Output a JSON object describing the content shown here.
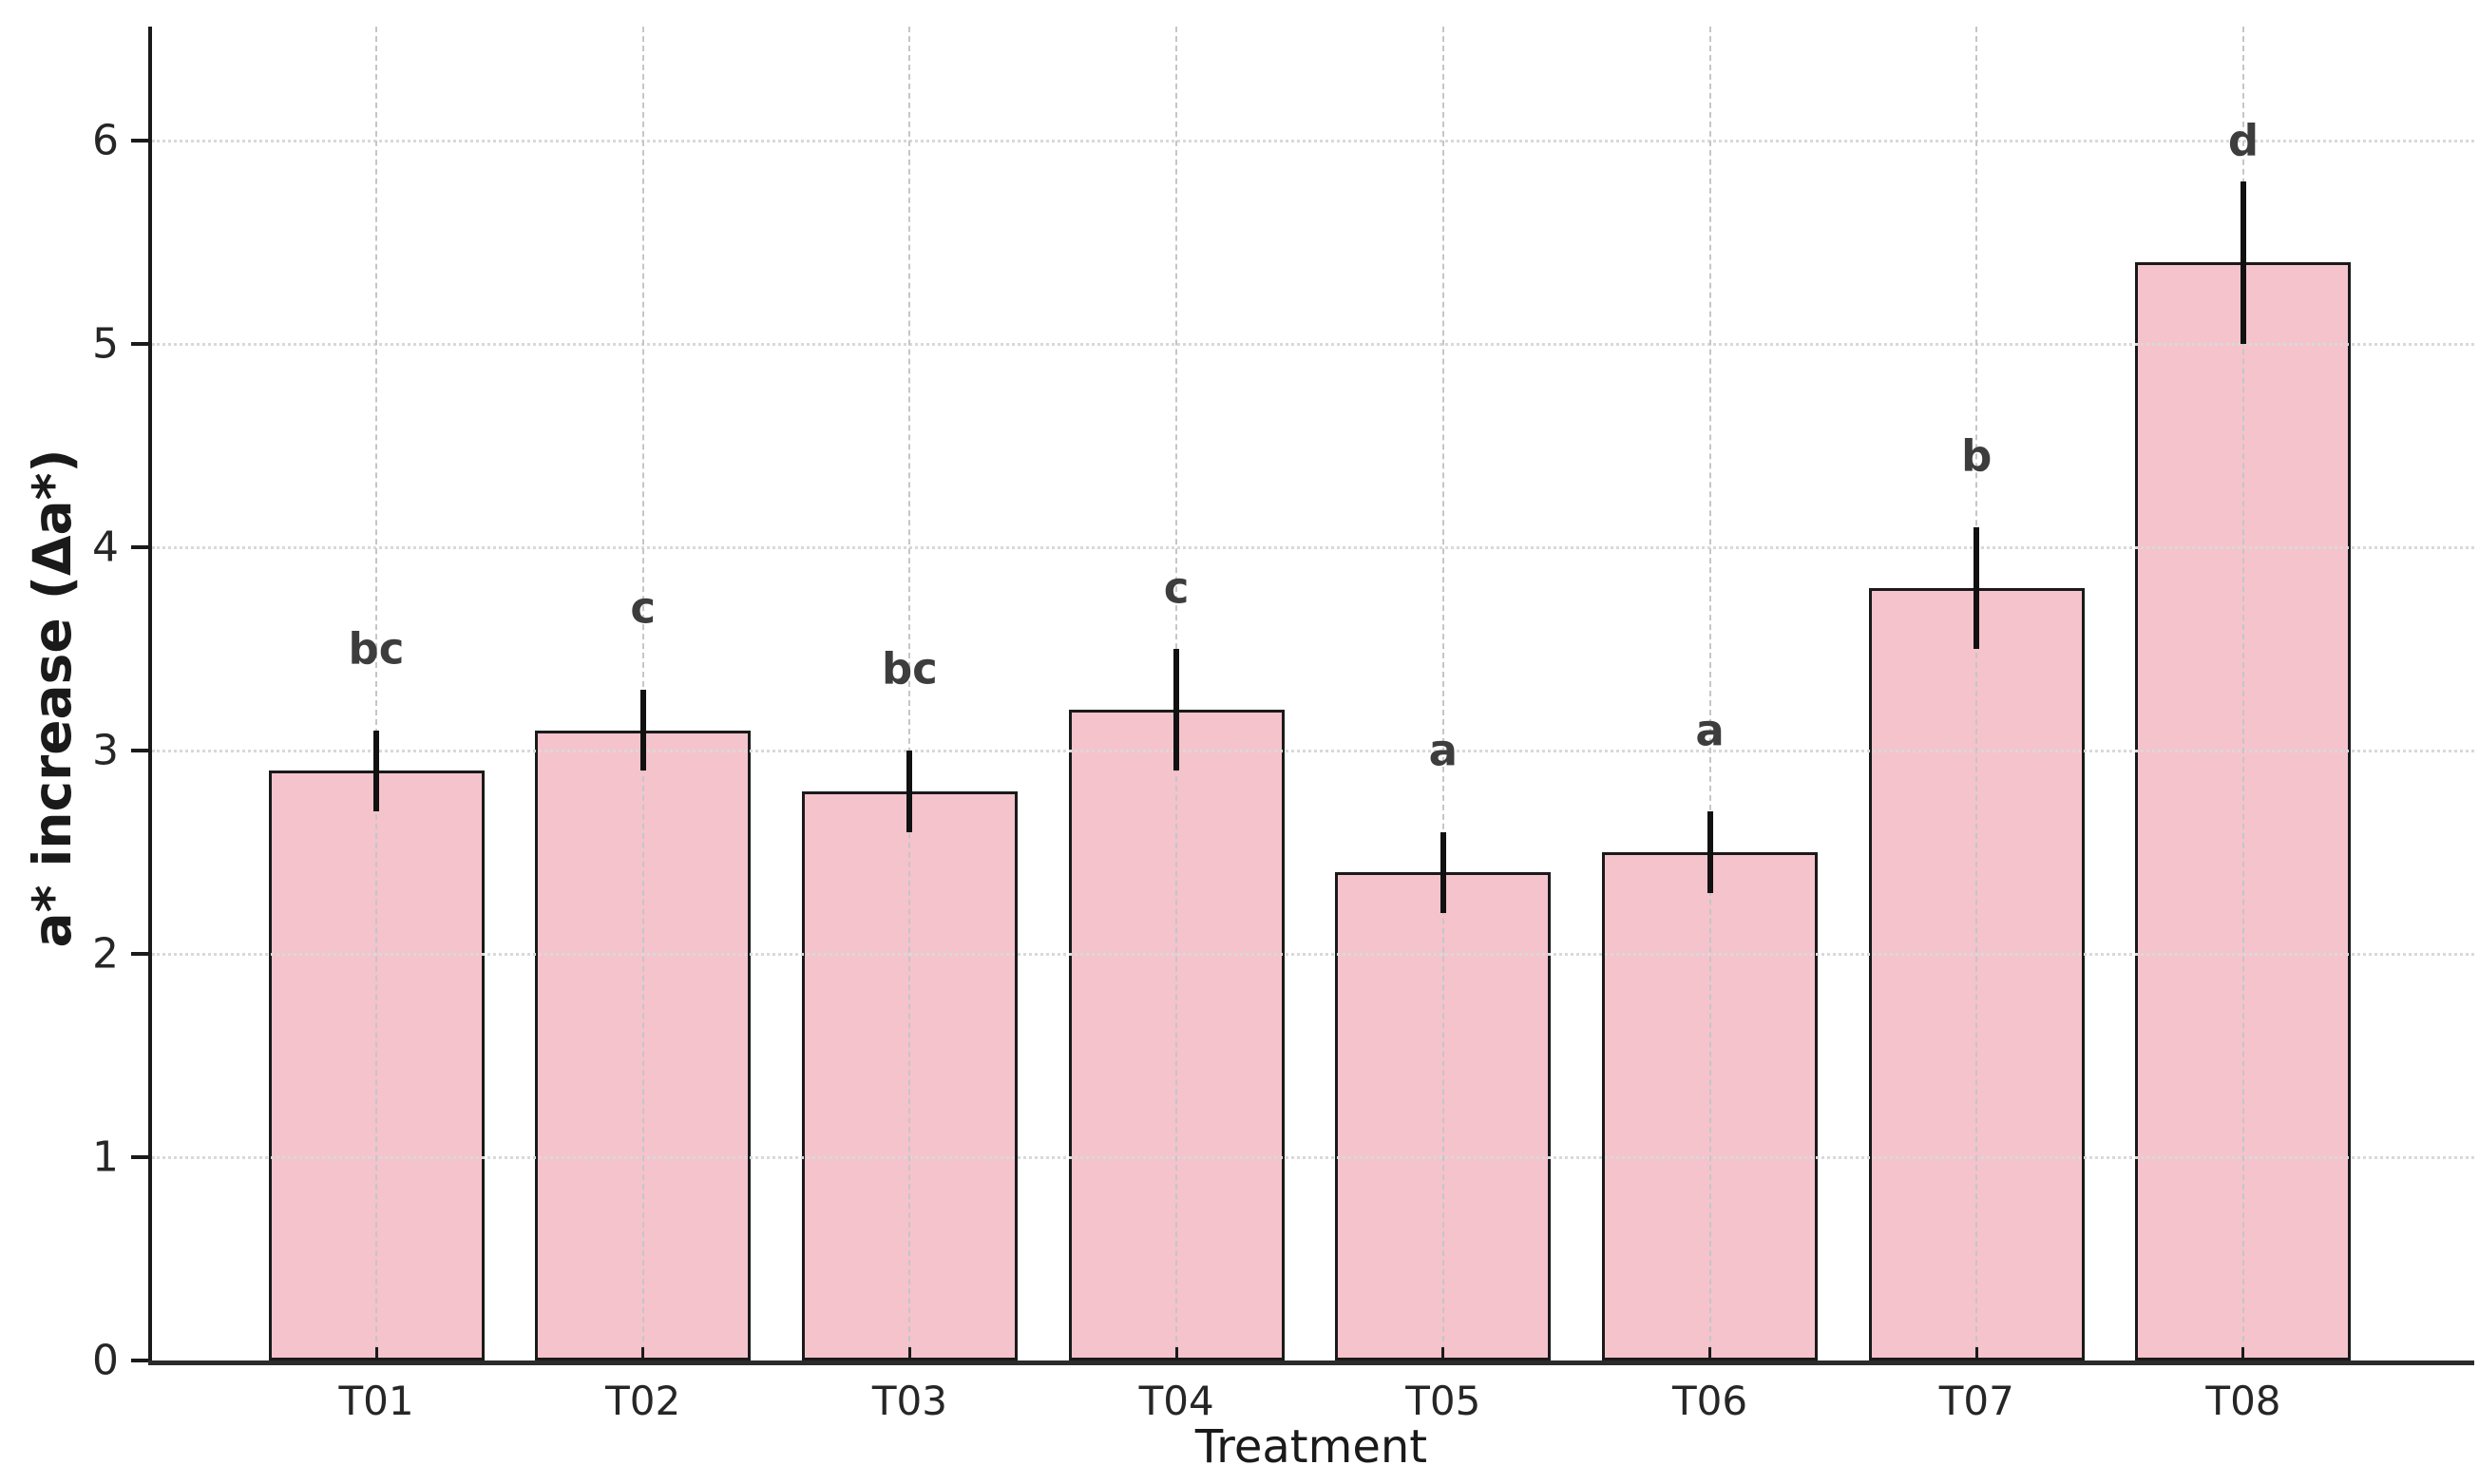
{
  "figure": {
    "background": "#ffffff"
  },
  "chart_data": {
    "type": "bar",
    "title": "",
    "xlabel": "Treatment",
    "ylabel": "a* increase (Δa*)",
    "categories": [
      "T01",
      "T02",
      "T03",
      "T04",
      "T05",
      "T06",
      "T07",
      "T08"
    ],
    "values": [
      2.9,
      3.1,
      2.8,
      3.2,
      2.4,
      2.5,
      3.8,
      5.4
    ],
    "errors": [
      0.2,
      0.2,
      0.2,
      0.3,
      0.2,
      0.2,
      0.3,
      0.4
    ],
    "sig_letters": [
      "bc",
      "c",
      "bc",
      "c",
      "a",
      "a",
      "b",
      "d"
    ],
    "sig_letter_y": [
      3.5,
      3.7,
      3.4,
      3.8,
      3.0,
      3.1,
      4.45,
      6.0
    ],
    "yticks": [
      0,
      1,
      2,
      3,
      4,
      5,
      6
    ],
    "ylim": [
      0,
      6.56
    ],
    "grid": {
      "horizontal": "dotted",
      "vertical": "dashed"
    },
    "legend_position": "none",
    "colors": {
      "bar_fill": "#f5c3cc",
      "bar_edge": "#1a1a1a",
      "error_bar": "#111111",
      "grid_h": "#d9d9d9",
      "grid_v": "#c6c6c6",
      "text": "#262626"
    }
  }
}
